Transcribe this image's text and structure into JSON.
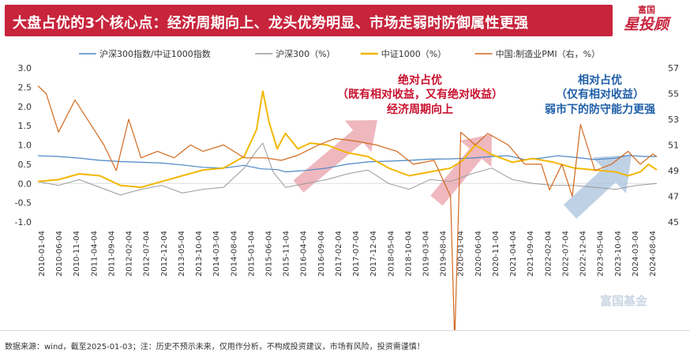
{
  "header": {
    "title": "大盘占优的3个核心点：经济周期向上、龙头优势明显、市场走弱时防御属性更强",
    "logo_top": "富国",
    "logo_main": "星投顾"
  },
  "footer": {
    "note": "数据来源：wind，截至2025-01-03；注：历史不预示未来，仅用作分析，不构成投资建议，市场有风险，投资需谨慎！"
  },
  "watermark": "富国基金",
  "colors": {
    "ratio": "#4a86c5",
    "hs300": "#9a9a9a",
    "zz1000": "#f2b705",
    "pmi": "#d2691e",
    "annotation_red": "#c8102e",
    "annotation_blue": "#1f5fa8",
    "arrow_red": "#e8a0a8",
    "arrow_blue": "#a9c2dc"
  },
  "annotations": [
    {
      "id": "left",
      "color": "red",
      "lines": [
        "绝对占优",
        "（既有相对收益，又有绝对收益）",
        "经济周期向上"
      ]
    },
    {
      "id": "right",
      "color": "blue",
      "lines": [
        "相对占优",
        "（仅有相对收益）",
        "弱市下的防守能力更强"
      ]
    }
  ],
  "chart_data": {
    "type": "line",
    "legend": [
      {
        "name": "沪深300指数/中证1000指数",
        "color": "#4a86c5"
      },
      {
        "name": "沪深300（%）",
        "color": "#9a9a9a"
      },
      {
        "name": "中证1000（%）",
        "color": "#f2b705"
      },
      {
        "name": "中国:制造业PMI（右，%）",
        "color": "#d2691e"
      }
    ],
    "y_left": {
      "ticks": [
        "3.0",
        "2.5",
        "2.0",
        "1.5",
        "1.0",
        "0.5",
        "0.0",
        "-0.5",
        "-1.0"
      ],
      "min": -1.0,
      "max": 3.0
    },
    "y_right": {
      "ticks": [
        "57",
        "55",
        "53",
        "51",
        "49",
        "47",
        "45"
      ],
      "min": 45,
      "max": 57
    },
    "x_ticks": [
      "2010-01-04",
      "2010-06-04",
      "2010-11-04",
      "2011-04-04",
      "2011-09-04",
      "2012-02-04",
      "2012-07-04",
      "2012-12-04",
      "2013-05-04",
      "2013-10-04",
      "2014-03-04",
      "2014-08-04",
      "2015-01-04",
      "2015-06-04",
      "2015-11-04",
      "2016-04-04",
      "2016-09-04",
      "2017-02-04",
      "2017-07-04",
      "2017-12-04",
      "2018-05-04",
      "2018-10-04",
      "2019-03-04",
      "2019-08-04",
      "2020-01-04",
      "2020-06-04",
      "2020-11-04",
      "2021-04-04",
      "2021-09-04",
      "2022-02-04",
      "2022-07-04",
      "2022-12-04",
      "2023-05-04",
      "2023-10-04",
      "2024-03-04",
      "2024-08-04"
    ],
    "x_range": [
      2010.0,
      2025.0
    ],
    "series": [
      {
        "name": "沪深300指数/中证1000指数",
        "axis": "left",
        "points": [
          [
            2010.0,
            0.72
          ],
          [
            2010.5,
            0.7
          ],
          [
            2011.0,
            0.66
          ],
          [
            2011.5,
            0.6
          ],
          [
            2012.0,
            0.57
          ],
          [
            2012.5,
            0.55
          ],
          [
            2013.0,
            0.53
          ],
          [
            2013.5,
            0.48
          ],
          [
            2014.0,
            0.42
          ],
          [
            2014.5,
            0.4
          ],
          [
            2015.0,
            0.47
          ],
          [
            2015.4,
            0.38
          ],
          [
            2015.8,
            0.36
          ],
          [
            2016.0,
            0.3
          ],
          [
            2016.5,
            0.34
          ],
          [
            2017.0,
            0.4
          ],
          [
            2017.5,
            0.5
          ],
          [
            2018.0,
            0.56
          ],
          [
            2018.5,
            0.58
          ],
          [
            2019.0,
            0.6
          ],
          [
            2019.5,
            0.63
          ],
          [
            2020.0,
            0.64
          ],
          [
            2020.5,
            0.66
          ],
          [
            2021.0,
            0.7
          ],
          [
            2021.4,
            0.72
          ],
          [
            2021.8,
            0.62
          ],
          [
            2022.2,
            0.66
          ],
          [
            2022.6,
            0.72
          ],
          [
            2023.0,
            0.68
          ],
          [
            2023.5,
            0.62
          ],
          [
            2024.0,
            0.66
          ],
          [
            2024.3,
            0.73
          ],
          [
            2024.7,
            0.7
          ],
          [
            2025.0,
            0.7
          ]
        ]
      },
      {
        "name": "沪深300（%）",
        "axis": "left",
        "points": [
          [
            2010.0,
            0.05
          ],
          [
            2010.5,
            -0.05
          ],
          [
            2011.0,
            0.1
          ],
          [
            2011.5,
            -0.1
          ],
          [
            2012.0,
            -0.3
          ],
          [
            2012.5,
            -0.15
          ],
          [
            2013.0,
            -0.05
          ],
          [
            2013.5,
            -0.25
          ],
          [
            2014.0,
            -0.15
          ],
          [
            2014.5,
            -0.1
          ],
          [
            2015.0,
            0.4
          ],
          [
            2015.3,
            0.85
          ],
          [
            2015.45,
            1.05
          ],
          [
            2015.7,
            0.3
          ],
          [
            2016.0,
            -0.1
          ],
          [
            2016.5,
            0.0
          ],
          [
            2017.0,
            0.1
          ],
          [
            2017.5,
            0.25
          ],
          [
            2018.0,
            0.35
          ],
          [
            2018.5,
            0.0
          ],
          [
            2019.0,
            -0.15
          ],
          [
            2019.5,
            0.1
          ],
          [
            2020.0,
            0.05
          ],
          [
            2020.5,
            0.25
          ],
          [
            2021.0,
            0.4
          ],
          [
            2021.5,
            0.1
          ],
          [
            2022.0,
            0.0
          ],
          [
            2022.5,
            -0.05
          ],
          [
            2023.0,
            -0.05
          ],
          [
            2023.5,
            -0.1
          ],
          [
            2024.0,
            -0.15
          ],
          [
            2024.5,
            -0.05
          ],
          [
            2025.0,
            0.0
          ]
        ]
      },
      {
        "name": "中证1000（%）",
        "axis": "left",
        "points": [
          [
            2010.0,
            0.05
          ],
          [
            2010.5,
            0.1
          ],
          [
            2011.0,
            0.25
          ],
          [
            2011.5,
            0.2
          ],
          [
            2012.0,
            -0.05
          ],
          [
            2012.5,
            -0.1
          ],
          [
            2013.0,
            0.05
          ],
          [
            2013.5,
            0.2
          ],
          [
            2014.0,
            0.35
          ],
          [
            2014.5,
            0.4
          ],
          [
            2015.0,
            0.7
          ],
          [
            2015.3,
            1.4
          ],
          [
            2015.45,
            2.4
          ],
          [
            2015.6,
            1.6
          ],
          [
            2015.8,
            0.9
          ],
          [
            2016.0,
            1.3
          ],
          [
            2016.3,
            0.9
          ],
          [
            2016.6,
            1.05
          ],
          [
            2017.0,
            1.0
          ],
          [
            2017.5,
            0.8
          ],
          [
            2018.0,
            0.7
          ],
          [
            2018.5,
            0.4
          ],
          [
            2019.0,
            0.2
          ],
          [
            2019.5,
            0.3
          ],
          [
            2020.0,
            0.4
          ],
          [
            2020.3,
            0.6
          ],
          [
            2020.6,
            1.0
          ],
          [
            2021.0,
            0.75
          ],
          [
            2021.5,
            0.55
          ],
          [
            2022.0,
            0.65
          ],
          [
            2022.5,
            0.55
          ],
          [
            2023.0,
            0.4
          ],
          [
            2023.5,
            0.35
          ],
          [
            2024.0,
            0.3
          ],
          [
            2024.3,
            0.2
          ],
          [
            2024.6,
            0.3
          ],
          [
            2024.8,
            0.5
          ],
          [
            2025.0,
            0.35
          ]
        ]
      },
      {
        "name": "中国:制造业PMI（右，%）",
        "axis": "right",
        "points": [
          [
            2010.0,
            55.6
          ],
          [
            2010.2,
            55.0
          ],
          [
            2010.5,
            52.0
          ],
          [
            2010.9,
            54.5
          ],
          [
            2011.3,
            52.5
          ],
          [
            2011.6,
            51.0
          ],
          [
            2011.9,
            49.0
          ],
          [
            2012.2,
            53.0
          ],
          [
            2012.5,
            50.0
          ],
          [
            2012.9,
            50.5
          ],
          [
            2013.3,
            50.0
          ],
          [
            2013.7,
            51.0
          ],
          [
            2014.0,
            50.5
          ],
          [
            2014.5,
            51.0
          ],
          [
            2015.0,
            50.0
          ],
          [
            2015.5,
            50.0
          ],
          [
            2015.9,
            49.8
          ],
          [
            2016.3,
            50.2
          ],
          [
            2016.8,
            51.0
          ],
          [
            2017.2,
            51.5
          ],
          [
            2017.7,
            51.3
          ],
          [
            2018.2,
            51.0
          ],
          [
            2018.7,
            50.5
          ],
          [
            2019.1,
            49.5
          ],
          [
            2019.6,
            49.8
          ],
          [
            2020.0,
            47.0
          ],
          [
            2020.1,
            35.7
          ],
          [
            2020.25,
            52.0
          ],
          [
            2020.6,
            51.0
          ],
          [
            2020.9,
            51.9
          ],
          [
            2021.4,
            51.0
          ],
          [
            2021.8,
            49.5
          ],
          [
            2022.2,
            49.5
          ],
          [
            2022.4,
            47.5
          ],
          [
            2022.7,
            49.5
          ],
          [
            2022.95,
            47.0
          ],
          [
            2023.15,
            52.6
          ],
          [
            2023.5,
            49.0
          ],
          [
            2023.9,
            49.5
          ],
          [
            2024.3,
            50.5
          ],
          [
            2024.6,
            49.5
          ],
          [
            2024.9,
            50.3
          ],
          [
            2025.0,
            50.1
          ]
        ]
      }
    ]
  }
}
